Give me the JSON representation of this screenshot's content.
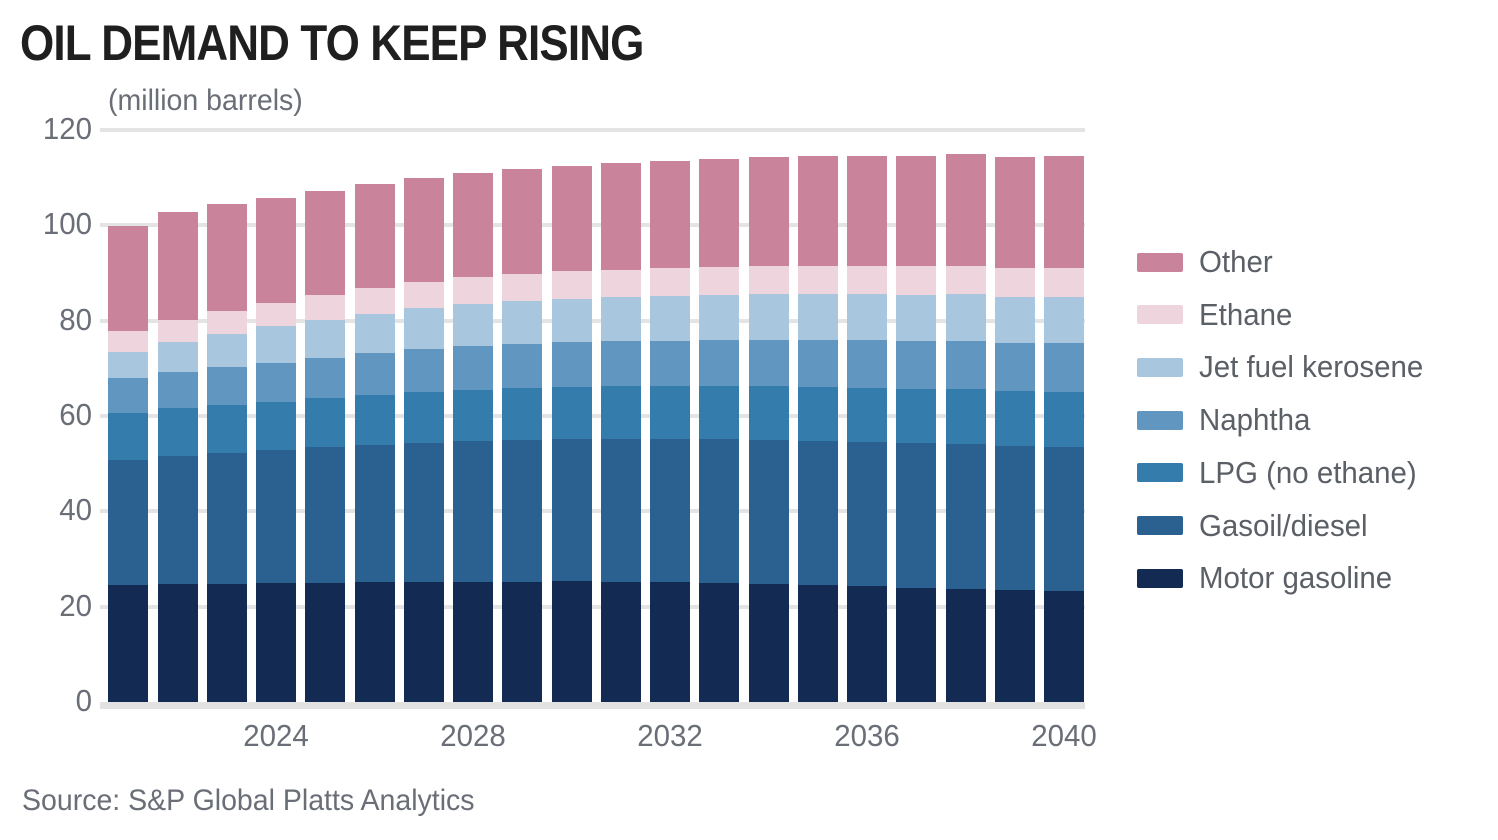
{
  "title": "OIL DEMAND TO KEEP RISING",
  "subtitle": "(million barrels)",
  "source": "Source: S&P Global Platts Analytics",
  "colors": {
    "motor_gasoline": "#132a52",
    "gasoil_diesel": "#2a6191",
    "lpg_no_ethane": "#347cab",
    "naphtha": "#6096c0",
    "jet_fuel_kerosene": "#a9c6df",
    "ethane": "#eed5dd",
    "other": "#c9849c",
    "gridline": "#e4e4e4",
    "axis_text": "#6a6e76",
    "legend_text": "#5b5f66",
    "title_text": "#1f1f1f"
  },
  "chart_data": {
    "type": "bar",
    "stacked": true,
    "title": "OIL DEMAND TO KEEP RISING",
    "subtitle": "(million barrels)",
    "unit": "million barrels",
    "grid": true,
    "legend_position": "right",
    "ylim": [
      0,
      120
    ],
    "y_ticks": [
      120,
      100,
      80,
      60,
      40,
      20,
      0
    ],
    "x_tick_labels": [
      "2024",
      "2028",
      "2032",
      "2036",
      "2040"
    ],
    "x_tick_years": [
      2024,
      2028,
      2032,
      2036,
      2040
    ],
    "x": [
      2021,
      2022,
      2023,
      2024,
      2025,
      2026,
      2027,
      2028,
      2029,
      2030,
      2031,
      2032,
      2033,
      2034,
      2035,
      2036,
      2037,
      2038,
      2039,
      2040
    ],
    "series": [
      {
        "name": "Motor gasoline",
        "color": "#132a52",
        "values": [
          24.5,
          24.7,
          24.8,
          24.9,
          25.0,
          25.1,
          25.1,
          25.2,
          25.2,
          25.3,
          25.2,
          25.1,
          25.0,
          24.8,
          24.6,
          24.3,
          24.0,
          23.7,
          23.4,
          23.2
        ]
      },
      {
        "name": "Gasoil/diesel",
        "color": "#2a6191",
        "values": [
          26.3,
          27.0,
          27.5,
          28.0,
          28.4,
          28.8,
          29.2,
          29.5,
          29.7,
          29.8,
          29.9,
          30.0,
          30.1,
          30.2,
          30.2,
          30.2,
          30.3,
          30.4,
          30.3,
          30.3
        ]
      },
      {
        "name": "LPG (no ethane)",
        "color": "#347cab",
        "values": [
          9.8,
          9.9,
          10.0,
          10.1,
          10.3,
          10.5,
          10.7,
          10.8,
          10.9,
          11.0,
          11.1,
          11.1,
          11.2,
          11.2,
          11.3,
          11.4,
          11.4,
          11.5,
          11.5,
          11.6
        ]
      },
      {
        "name": "Naphtha",
        "color": "#6096c0",
        "values": [
          7.3,
          7.6,
          7.9,
          8.2,
          8.5,
          8.8,
          9.0,
          9.2,
          9.3,
          9.4,
          9.5,
          9.6,
          9.7,
          9.8,
          9.9,
          10.0,
          10.1,
          10.2,
          10.2,
          10.3
        ]
      },
      {
        "name": "Jet fuel kerosene",
        "color": "#a9c6df",
        "values": [
          5.6,
          6.4,
          7.0,
          7.6,
          8.0,
          8.3,
          8.6,
          8.8,
          9.0,
          9.1,
          9.2,
          9.3,
          9.4,
          9.5,
          9.5,
          9.6,
          9.6,
          9.7,
          9.6,
          9.6
        ]
      },
      {
        "name": "Ethane",
        "color": "#eed5dd",
        "values": [
          4.3,
          4.6,
          4.8,
          5.0,
          5.2,
          5.4,
          5.5,
          5.6,
          5.7,
          5.8,
          5.8,
          5.9,
          5.9,
          5.9,
          6.0,
          6.0,
          6.0,
          6.0,
          6.0,
          6.1
        ]
      },
      {
        "name": "Other",
        "color": "#c9849c",
        "values": [
          22.0,
          22.7,
          22.4,
          22.0,
          21.8,
          21.7,
          21.9,
          21.9,
          22.0,
          22.1,
          22.3,
          22.5,
          22.7,
          22.9,
          23.0,
          23.0,
          23.2,
          23.4,
          23.4,
          23.4
        ]
      }
    ],
    "legend": [
      {
        "label": "Other",
        "color": "#c9849c"
      },
      {
        "label": "Ethane",
        "color": "#eed5dd"
      },
      {
        "label": "Jet fuel kerosene",
        "color": "#a9c6df"
      },
      {
        "label": "Naphtha",
        "color": "#6096c0"
      },
      {
        "label": "LPG (no ethane)",
        "color": "#347cab"
      },
      {
        "label": "Gasoil/diesel",
        "color": "#2a6191"
      },
      {
        "label": "Motor gasoline",
        "color": "#132a52"
      }
    ]
  }
}
